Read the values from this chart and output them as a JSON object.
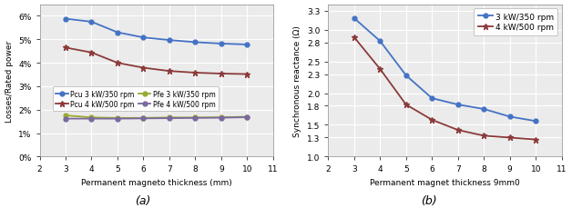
{
  "x": [
    3,
    4,
    5,
    6,
    7,
    8,
    9,
    10
  ],
  "pcu_3kw": [
    0.0588,
    0.0575,
    0.053,
    0.0508,
    0.0497,
    0.0488,
    0.0482,
    0.0478
  ],
  "pcu_4kw": [
    0.0465,
    0.0444,
    0.04,
    0.0379,
    0.0365,
    0.0358,
    0.0354,
    0.0352
  ],
  "pfe_3kw": [
    0.0176,
    0.0167,
    0.0165,
    0.0165,
    0.0167,
    0.0167,
    0.0168,
    0.017
  ],
  "pfe_4kw": [
    0.0162,
    0.0162,
    0.0162,
    0.0163,
    0.0164,
    0.0165,
    0.0166,
    0.0168
  ],
  "xs_3kw": [
    3.18,
    2.82,
    2.28,
    1.92,
    1.82,
    1.75,
    1.63,
    1.56
  ],
  "xs_4kw": [
    2.88,
    2.38,
    1.82,
    1.58,
    1.42,
    1.33,
    1.3,
    1.27
  ],
  "color_blue": "#4472C4",
  "color_dark_red": "#8B3A3A",
  "color_olive": "#9AAA30",
  "color_purple": "#7B68A0",
  "xlabel_a": "Permanent magneto thickness (mm)",
  "xlabel_b": "Permanent magnet thickness 9mm0",
  "ylabel_a": "Losses/Rated power",
  "ylabel_b": "Synchronous reactance (Ω)",
  "label_pcu3": "Pcu 3 kW/350 rpm",
  "label_pcu4": "Pcu 4 kW/500 rpm",
  "label_pfe3": "Pfe 3 kW/350 rpm",
  "label_pfe4": "Pfe 4 kW/500 rpm",
  "label_xs3": "3 kW/350 rpm",
  "label_xs4": "4 kW/500 rpm",
  "caption_a": "(a)",
  "caption_b": "(b)",
  "xlim": [
    2,
    11
  ],
  "ylim_a_min": 0.0,
  "ylim_a_max": 0.065,
  "yticks_a": [
    0.0,
    0.01,
    0.02,
    0.03,
    0.04,
    0.05,
    0.06
  ],
  "ylim_b_min": 1.0,
  "ylim_b_max": 3.4,
  "yticks_b": [
    1.0,
    1.3,
    1.5,
    1.8,
    2.0,
    2.3,
    2.5,
    2.8,
    3.0,
    3.3
  ],
  "bg_color": "#EBEBEB",
  "grid_color": "#FFFFFF"
}
